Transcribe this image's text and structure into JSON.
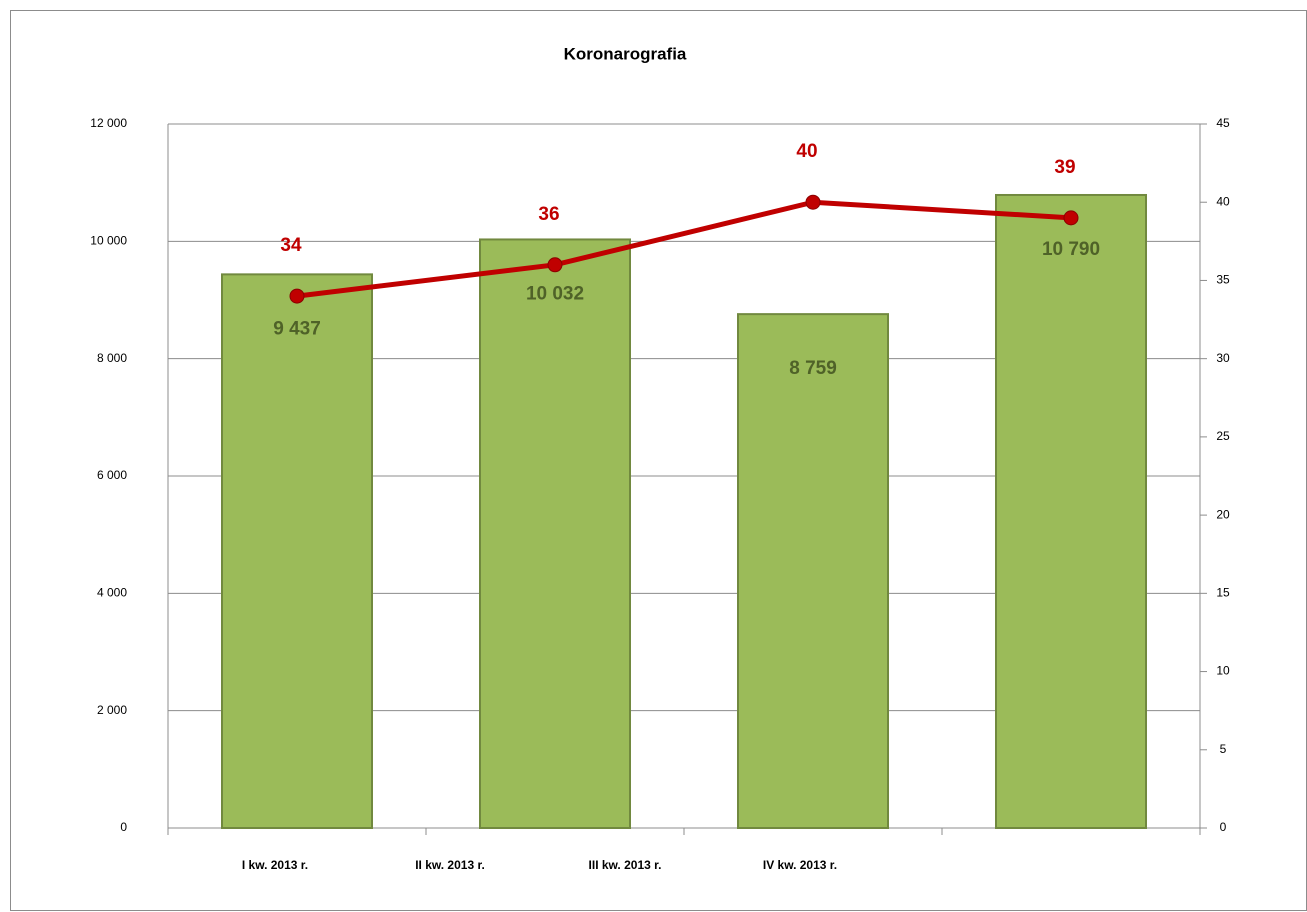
{
  "chart_data": {
    "type": "bar_line",
    "title": "Koronarografia",
    "categories": [
      "I kw. 2013 r.",
      "II kw. 2013 r.",
      "III kw. 2013 r.",
      "IV kw. 2013 r."
    ],
    "series": [
      {
        "type": "bar",
        "color": "#9bbb59",
        "values": [
          9437,
          10032,
          8759,
          10790
        ],
        "value_labels": [
          "9 437",
          "10 032",
          "8 759",
          "10 790"
        ]
      },
      {
        "type": "line",
        "axis": "y2",
        "color": "#c00000",
        "values": [
          34,
          36,
          40,
          39
        ]
      }
    ],
    "ylim": [
      0,
      12000
    ],
    "yticks": [
      0,
      {
        "value": 2000,
        "label": "2 000"
      },
      {
        "value": 4000,
        "label": "4 000"
      },
      {
        "value": 6000,
        "label": "6 000"
      },
      {
        "value": 8000,
        "label": "8 000"
      },
      {
        "value": 10000,
        "label": "10 000"
      },
      {
        "value": 12000,
        "label": "12 000"
      }
    ],
    "y2lim": [
      0,
      45
    ],
    "y2ticks": [
      0,
      5,
      10,
      15,
      20,
      25,
      30,
      35,
      40,
      45
    ],
    "grid": true
  }
}
